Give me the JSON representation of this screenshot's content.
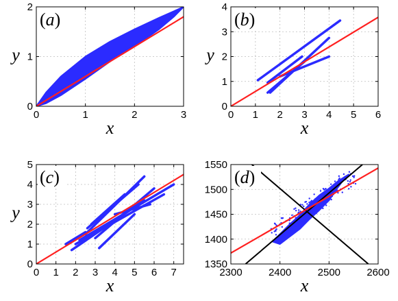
{
  "chart_data": [
    {
      "panel": "(a)",
      "label_open": "(",
      "label_letter": "a",
      "label_close": ")",
      "type": "scatter",
      "xlabel": "x",
      "ylabel": "y",
      "xlim": [
        0,
        3
      ],
      "ylim": [
        0,
        2
      ],
      "xticks": [
        "0",
        "1",
        "2",
        "3"
      ],
      "yticks": [
        "0",
        "1",
        "2"
      ],
      "grid": true,
      "scatter_color": "#2b2bff",
      "line_color": "#ff2020",
      "cloud_polygon": [
        [
          0,
          0
        ],
        [
          0.2,
          0.28
        ],
        [
          0.5,
          0.6
        ],
        [
          1.0,
          1.0
        ],
        [
          1.5,
          1.3
        ],
        [
          2.0,
          1.55
        ],
        [
          2.5,
          1.78
        ],
        [
          3.0,
          2.0
        ],
        [
          2.8,
          1.8
        ],
        [
          2.5,
          1.55
        ],
        [
          2.0,
          1.2
        ],
        [
          1.5,
          0.9
        ],
        [
          1.0,
          0.55
        ],
        [
          0.5,
          0.22
        ],
        [
          0.2,
          0.06
        ]
      ],
      "fit_line": [
        [
          0,
          0
        ],
        [
          3,
          1.8
        ]
      ]
    },
    {
      "panel": "(b)",
      "label_open": "(",
      "label_letter": "b",
      "label_close": ")",
      "type": "scatter",
      "xlabel": "x",
      "ylabel": "y",
      "xlim": [
        0,
        6
      ],
      "ylim": [
        0,
        4
      ],
      "xticks": [
        "0",
        "1",
        "2",
        "3",
        "4",
        "5",
        "6"
      ],
      "yticks": [
        "0",
        "1",
        "2",
        "3",
        "4"
      ],
      "grid": true,
      "scatter_color": "#2b2bff",
      "line_color": "#ff2020",
      "segments": [
        [
          [
            1.1,
            1.05
          ],
          [
            4.45,
            3.45
          ]
        ],
        [
          [
            1.5,
            0.95
          ],
          [
            2.9,
            2.0
          ]
        ],
        [
          [
            1.6,
            0.55
          ],
          [
            4.0,
            2.75
          ]
        ],
        [
          [
            2.0,
            1.2
          ],
          [
            4.0,
            2.0
          ]
        ],
        [
          [
            1.5,
            0.55
          ],
          [
            3.0,
            1.8
          ]
        ]
      ],
      "fit_line": [
        [
          0,
          0
        ],
        [
          6,
          3.58
        ]
      ]
    },
    {
      "panel": "(c)",
      "label_open": "(",
      "label_letter": "c",
      "label_close": ")",
      "type": "scatter",
      "xlabel": "x",
      "ylabel": "y",
      "xlim": [
        0,
        7.5
      ],
      "ylim": [
        0,
        5
      ],
      "xticks": [
        "0",
        "1",
        "2",
        "3",
        "4",
        "5",
        "6",
        "7"
      ],
      "yticks": [
        "0",
        "1",
        "2",
        "3",
        "4",
        "5"
      ],
      "grid": true,
      "scatter_color": "#2b2bff",
      "line_color": "#ff2020",
      "segments": [
        [
          [
            1.8,
            0.7
          ],
          [
            5.5,
            3.2
          ]
        ],
        [
          [
            2.0,
            1.0
          ],
          [
            6.5,
            3.5
          ]
        ],
        [
          [
            2.2,
            1.2
          ],
          [
            7.0,
            4.0
          ]
        ],
        [
          [
            2.5,
            1.5
          ],
          [
            5.5,
            4.4
          ]
        ],
        [
          [
            2.6,
            1.8
          ],
          [
            5.2,
            4.0
          ]
        ],
        [
          [
            3.0,
            1.3
          ],
          [
            6.0,
            3.8
          ]
        ],
        [
          [
            2.8,
            2.0
          ],
          [
            4.5,
            3.5
          ]
        ],
        [
          [
            3.2,
            0.8
          ],
          [
            5.0,
            2.5
          ]
        ],
        [
          [
            1.5,
            1.0
          ],
          [
            2.5,
            1.6
          ]
        ],
        [
          [
            4.0,
            2.5
          ],
          [
            5.8,
            3.0
          ]
        ]
      ],
      "fit_line": [
        [
          0,
          0
        ],
        [
          7.5,
          4.5
        ]
      ]
    },
    {
      "panel": "(d)",
      "label_open": "(",
      "label_letter": "d",
      "label_close": ")",
      "type": "scatter",
      "xlabel": "x",
      "ylabel": "",
      "xlim": [
        2300,
        2600
      ],
      "ylim": [
        1350,
        1550
      ],
      "xticks": [
        "2300",
        "2400",
        "2500",
        "2600"
      ],
      "yticks": [
        "1350",
        "1400",
        "1450",
        "1500",
        "1550"
      ],
      "grid": true,
      "scatter_color": "#2b2bff",
      "line_color": "#ff2020",
      "cloud_center": [
        2470,
        1470
      ],
      "cloud_polygon": [
        [
          2385,
          1395
        ],
        [
          2400,
          1410
        ],
        [
          2420,
          1430
        ],
        [
          2440,
          1448
        ],
        [
          2460,
          1470
        ],
        [
          2480,
          1488
        ],
        [
          2500,
          1502
        ],
        [
          2520,
          1518
        ],
        [
          2540,
          1530
        ],
        [
          2530,
          1520
        ],
        [
          2515,
          1500
        ],
        [
          2500,
          1478
        ],
        [
          2480,
          1458
        ],
        [
          2460,
          1440
        ],
        [
          2440,
          1420
        ],
        [
          2420,
          1405
        ],
        [
          2400,
          1390
        ]
      ],
      "fit_line": [
        [
          2300,
          1372
        ],
        [
          2600,
          1543
        ]
      ],
      "principal_axis_1": [
        [
          2330,
          1350
        ],
        [
          2568,
          1550
        ]
      ],
      "principal_axis_2": [
        [
          2325,
          1565
        ],
        [
          2580,
          1350
        ]
      ],
      "principal_color": "#000000"
    }
  ]
}
